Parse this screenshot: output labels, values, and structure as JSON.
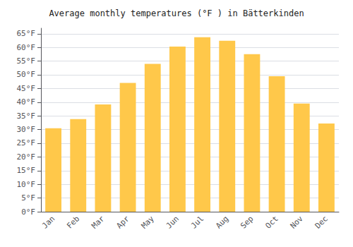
{
  "chart_data": {
    "type": "bar",
    "title": "Average monthly temperatures (°F ) in Bätterkinden",
    "categories": [
      "Jan",
      "Feb",
      "Mar",
      "Apr",
      "May",
      "Jun",
      "Jul",
      "Aug",
      "Sep",
      "Oct",
      "Nov",
      "Dec"
    ],
    "values": [
      30.5,
      33.8,
      39.2,
      47.0,
      54.0,
      60.3,
      63.7,
      62.4,
      57.5,
      49.5,
      39.5,
      32.2
    ],
    "color": "#FFC84A",
    "ylim": [
      0,
      67
    ],
    "yticks": [
      {
        "value": 0,
        "label": "0°F"
      },
      {
        "value": 5,
        "label": "5°F"
      },
      {
        "value": 10,
        "label": "10°F"
      },
      {
        "value": 15,
        "label": "15°F"
      },
      {
        "value": 20,
        "label": "20°F"
      },
      {
        "value": 25,
        "label": "25°F"
      },
      {
        "value": 30,
        "label": "30°F"
      },
      {
        "value": 35,
        "label": "35°F"
      },
      {
        "value": 40,
        "label": "40°F"
      },
      {
        "value": 45,
        "label": "45°F"
      },
      {
        "value": 50,
        "label": "50°F"
      },
      {
        "value": 55,
        "label": "55°F"
      },
      {
        "value": 60,
        "label": "60°F"
      },
      {
        "value": 65,
        "label": "65°F"
      }
    ],
    "grid": true
  }
}
